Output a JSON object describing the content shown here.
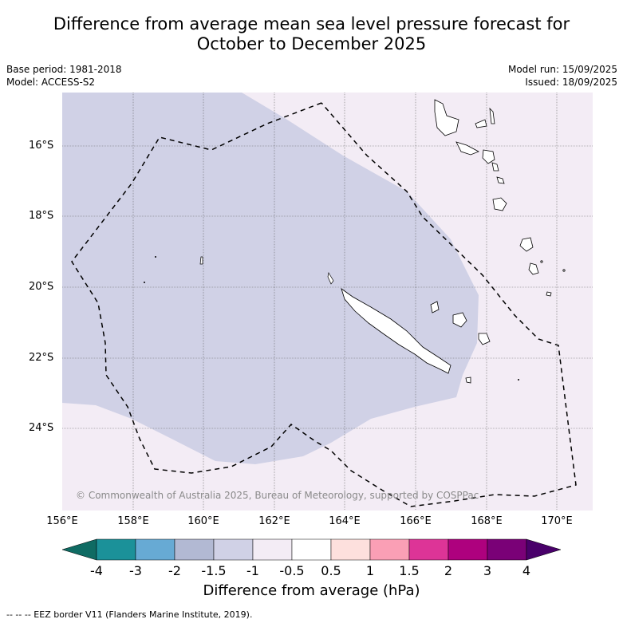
{
  "title_line1": "Difference from average mean sea level pressure forecast for",
  "title_line2": "October to December 2025",
  "base_period": "Base period: 1981-2018",
  "model": "Model: ACCESS-S2",
  "model_run": "Model run: 15/09/2025",
  "issued": "Issued: 18/09/2025",
  "copyright": "© Commonwealth of Australia 2025, Bureau of Meteorology, supported by COSPPac",
  "lat_labels": [
    "16°S",
    "18°S",
    "20°S",
    "22°S",
    "24°S"
  ],
  "lon_labels": [
    "156°E",
    "158°E",
    "160°E",
    "162°E",
    "164°E",
    "166°E",
    "168°E",
    "170°E"
  ],
  "colorbar": {
    "title": "Difference from average (hPa)",
    "ticks": [
      "-4",
      "-3",
      "-2",
      "-1.5",
      "-1",
      "-0.5",
      "0.5",
      "1",
      "1.5",
      "2",
      "3",
      "4"
    ],
    "colors": [
      "#0f6b63",
      "#1b9199",
      "#67aad4",
      "#b2b9d3",
      "#d0d1e6",
      "#f3ecf5",
      "#ffffff",
      "#fde0dd",
      "#fa9fb5",
      "#dd3497",
      "#ae017e",
      "#7a0177",
      "#49006a"
    ]
  },
  "footnote": "--  --  -- EEZ border V11 (Flanders Marine Institute, 2019).",
  "map": {
    "region": "New Caledonia",
    "features": [
      "New Caledonia",
      "Vanuatu",
      "Loyalty Islands"
    ],
    "fill_colors": {
      "background": "#f3ecf5",
      "anomaly_area": "#d0d1e6"
    }
  }
}
